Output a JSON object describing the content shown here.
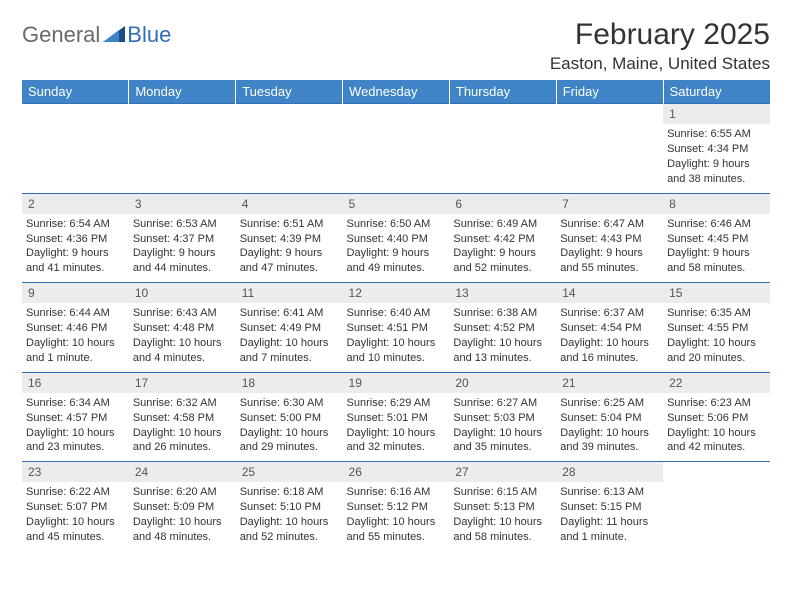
{
  "logo": {
    "part1": "General",
    "part2": "Blue"
  },
  "title": "February 2025",
  "location": "Easton, Maine, United States",
  "colors": {
    "header_bg": "#3e84c6",
    "header_text": "#ffffff",
    "daynum_bg": "#ececec",
    "row_border": "#2f6fb3",
    "logo_gray": "#6b6b6b",
    "logo_blue": "#2f6fb3",
    "triangle": "#1a4e87"
  },
  "weekdays": [
    "Sunday",
    "Monday",
    "Tuesday",
    "Wednesday",
    "Thursday",
    "Friday",
    "Saturday"
  ],
  "weeks": [
    [
      {
        "n": "",
        "sr": "",
        "ss": "",
        "dl": ""
      },
      {
        "n": "",
        "sr": "",
        "ss": "",
        "dl": ""
      },
      {
        "n": "",
        "sr": "",
        "ss": "",
        "dl": ""
      },
      {
        "n": "",
        "sr": "",
        "ss": "",
        "dl": ""
      },
      {
        "n": "",
        "sr": "",
        "ss": "",
        "dl": ""
      },
      {
        "n": "",
        "sr": "",
        "ss": "",
        "dl": ""
      },
      {
        "n": "1",
        "sr": "Sunrise: 6:55 AM",
        "ss": "Sunset: 4:34 PM",
        "dl": "Daylight: 9 hours and 38 minutes."
      }
    ],
    [
      {
        "n": "2",
        "sr": "Sunrise: 6:54 AM",
        "ss": "Sunset: 4:36 PM",
        "dl": "Daylight: 9 hours and 41 minutes."
      },
      {
        "n": "3",
        "sr": "Sunrise: 6:53 AM",
        "ss": "Sunset: 4:37 PM",
        "dl": "Daylight: 9 hours and 44 minutes."
      },
      {
        "n": "4",
        "sr": "Sunrise: 6:51 AM",
        "ss": "Sunset: 4:39 PM",
        "dl": "Daylight: 9 hours and 47 minutes."
      },
      {
        "n": "5",
        "sr": "Sunrise: 6:50 AM",
        "ss": "Sunset: 4:40 PM",
        "dl": "Daylight: 9 hours and 49 minutes."
      },
      {
        "n": "6",
        "sr": "Sunrise: 6:49 AM",
        "ss": "Sunset: 4:42 PM",
        "dl": "Daylight: 9 hours and 52 minutes."
      },
      {
        "n": "7",
        "sr": "Sunrise: 6:47 AM",
        "ss": "Sunset: 4:43 PM",
        "dl": "Daylight: 9 hours and 55 minutes."
      },
      {
        "n": "8",
        "sr": "Sunrise: 6:46 AM",
        "ss": "Sunset: 4:45 PM",
        "dl": "Daylight: 9 hours and 58 minutes."
      }
    ],
    [
      {
        "n": "9",
        "sr": "Sunrise: 6:44 AM",
        "ss": "Sunset: 4:46 PM",
        "dl": "Daylight: 10 hours and 1 minute."
      },
      {
        "n": "10",
        "sr": "Sunrise: 6:43 AM",
        "ss": "Sunset: 4:48 PM",
        "dl": "Daylight: 10 hours and 4 minutes."
      },
      {
        "n": "11",
        "sr": "Sunrise: 6:41 AM",
        "ss": "Sunset: 4:49 PM",
        "dl": "Daylight: 10 hours and 7 minutes."
      },
      {
        "n": "12",
        "sr": "Sunrise: 6:40 AM",
        "ss": "Sunset: 4:51 PM",
        "dl": "Daylight: 10 hours and 10 minutes."
      },
      {
        "n": "13",
        "sr": "Sunrise: 6:38 AM",
        "ss": "Sunset: 4:52 PM",
        "dl": "Daylight: 10 hours and 13 minutes."
      },
      {
        "n": "14",
        "sr": "Sunrise: 6:37 AM",
        "ss": "Sunset: 4:54 PM",
        "dl": "Daylight: 10 hours and 16 minutes."
      },
      {
        "n": "15",
        "sr": "Sunrise: 6:35 AM",
        "ss": "Sunset: 4:55 PM",
        "dl": "Daylight: 10 hours and 20 minutes."
      }
    ],
    [
      {
        "n": "16",
        "sr": "Sunrise: 6:34 AM",
        "ss": "Sunset: 4:57 PM",
        "dl": "Daylight: 10 hours and 23 minutes."
      },
      {
        "n": "17",
        "sr": "Sunrise: 6:32 AM",
        "ss": "Sunset: 4:58 PM",
        "dl": "Daylight: 10 hours and 26 minutes."
      },
      {
        "n": "18",
        "sr": "Sunrise: 6:30 AM",
        "ss": "Sunset: 5:00 PM",
        "dl": "Daylight: 10 hours and 29 minutes."
      },
      {
        "n": "19",
        "sr": "Sunrise: 6:29 AM",
        "ss": "Sunset: 5:01 PM",
        "dl": "Daylight: 10 hours and 32 minutes."
      },
      {
        "n": "20",
        "sr": "Sunrise: 6:27 AM",
        "ss": "Sunset: 5:03 PM",
        "dl": "Daylight: 10 hours and 35 minutes."
      },
      {
        "n": "21",
        "sr": "Sunrise: 6:25 AM",
        "ss": "Sunset: 5:04 PM",
        "dl": "Daylight: 10 hours and 39 minutes."
      },
      {
        "n": "22",
        "sr": "Sunrise: 6:23 AM",
        "ss": "Sunset: 5:06 PM",
        "dl": "Daylight: 10 hours and 42 minutes."
      }
    ],
    [
      {
        "n": "23",
        "sr": "Sunrise: 6:22 AM",
        "ss": "Sunset: 5:07 PM",
        "dl": "Daylight: 10 hours and 45 minutes."
      },
      {
        "n": "24",
        "sr": "Sunrise: 6:20 AM",
        "ss": "Sunset: 5:09 PM",
        "dl": "Daylight: 10 hours and 48 minutes."
      },
      {
        "n": "25",
        "sr": "Sunrise: 6:18 AM",
        "ss": "Sunset: 5:10 PM",
        "dl": "Daylight: 10 hours and 52 minutes."
      },
      {
        "n": "26",
        "sr": "Sunrise: 6:16 AM",
        "ss": "Sunset: 5:12 PM",
        "dl": "Daylight: 10 hours and 55 minutes."
      },
      {
        "n": "27",
        "sr": "Sunrise: 6:15 AM",
        "ss": "Sunset: 5:13 PM",
        "dl": "Daylight: 10 hours and 58 minutes."
      },
      {
        "n": "28",
        "sr": "Sunrise: 6:13 AM",
        "ss": "Sunset: 5:15 PM",
        "dl": "Daylight: 11 hours and 1 minute."
      },
      {
        "n": "",
        "sr": "",
        "ss": "",
        "dl": ""
      }
    ]
  ]
}
